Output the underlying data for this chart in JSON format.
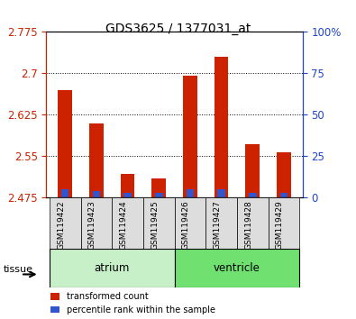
{
  "title": "GDS3625 / 1377031_at",
  "samples": [
    "GSM119422",
    "GSM119423",
    "GSM119424",
    "GSM119425",
    "GSM119426",
    "GSM119427",
    "GSM119428",
    "GSM119429"
  ],
  "transformed_count": [
    2.67,
    2.61,
    2.518,
    2.51,
    2.695,
    2.73,
    2.572,
    2.557
  ],
  "percentile_rank": [
    5,
    4,
    3,
    3,
    5,
    5,
    3,
    3
  ],
  "baseline": 2.475,
  "ylim_left": [
    2.475,
    2.775
  ],
  "ylim_right": [
    0,
    100
  ],
  "yticks_left": [
    2.475,
    2.55,
    2.625,
    2.7,
    2.775
  ],
  "yticks_right": [
    0,
    25,
    50,
    75,
    100
  ],
  "groups": [
    {
      "label": "atrium",
      "start": 0,
      "end": 3,
      "color": "#c8f0c8"
    },
    {
      "label": "ventricle",
      "start": 4,
      "end": 7,
      "color": "#70e070"
    }
  ],
  "bar_color_red": "#cc2200",
  "bar_color_blue": "#3355cc",
  "background_color": "#ffffff",
  "plot_bg": "#ffffff",
  "tick_label_color_left": "#cc2200",
  "tick_label_color_right": "#2244cc",
  "grid_color": "#000000",
  "bar_width": 0.45,
  "tissue_label": "tissue",
  "group_box_color": "#dddddd",
  "label_fontsize": 9,
  "tick_fontsize": 8.5
}
